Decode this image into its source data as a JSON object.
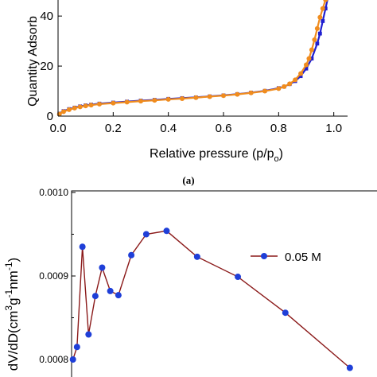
{
  "chart_data": [
    {
      "type": "line",
      "panel_label": "(a)",
      "xlabel": "Relative pressure (p/p",
      "xlabel_sub": "o",
      "xlabel_close": ")",
      "ylabel": "Quantity Adsorb",
      "xlim": [
        0,
        1.05
      ],
      "ylim": [
        0,
        48
      ],
      "x_ticks": [
        "0.0",
        "0.2",
        "0.4",
        "0.6",
        "0.8",
        "1.0"
      ],
      "y_ticks": [
        "0",
        "20",
        "40"
      ],
      "colors": {
        "blue": "#1f1fd0",
        "orange": "#f08c1e"
      },
      "series": [
        {
          "color_key": "blue",
          "marker": "square",
          "x": [
            0.005,
            0.02,
            0.04,
            0.06,
            0.08,
            0.1,
            0.12,
            0.15,
            0.2,
            0.25,
            0.3,
            0.35,
            0.4,
            0.45,
            0.5,
            0.55,
            0.6,
            0.65,
            0.7,
            0.75,
            0.8,
            0.82,
            0.84,
            0.86,
            0.88,
            0.9,
            0.92,
            0.94,
            0.95,
            0.96,
            0.97,
            0.98
          ],
          "y": [
            1.0,
            2.0,
            2.8,
            3.4,
            3.9,
            4.3,
            4.6,
            5.0,
            5.4,
            5.8,
            6.2,
            6.5,
            6.9,
            7.2,
            7.5,
            7.9,
            8.3,
            8.8,
            9.4,
            10.1,
            11.2,
            11.8,
            12.8,
            14.0,
            16.0,
            19.0,
            23.0,
            29.0,
            33.0,
            38.0,
            43.0,
            48.0
          ]
        },
        {
          "color_key": "orange",
          "marker": "circle",
          "x": [
            0.005,
            0.02,
            0.04,
            0.06,
            0.08,
            0.1,
            0.12,
            0.15,
            0.2,
            0.25,
            0.3,
            0.35,
            0.4,
            0.45,
            0.5,
            0.55,
            0.6,
            0.65,
            0.7,
            0.75,
            0.8,
            0.82,
            0.84,
            0.86,
            0.88,
            0.9,
            0.91,
            0.92,
            0.93,
            0.94,
            0.95,
            0.96,
            0.97,
            0.98
          ],
          "y": [
            0.8,
            1.8,
            2.6,
            3.2,
            3.7,
            4.1,
            4.4,
            4.8,
            5.2,
            5.6,
            6.0,
            6.3,
            6.7,
            7.0,
            7.4,
            7.8,
            8.2,
            8.7,
            9.3,
            10.0,
            11.0,
            11.8,
            12.9,
            14.5,
            17.0,
            20.5,
            23.0,
            26.5,
            30.5,
            35.0,
            39.5,
            43.0,
            46.5,
            48.0
          ]
        }
      ]
    },
    {
      "type": "line",
      "ylabel_main": "dV/dD(cm",
      "ylabel_sup1": "3",
      "ylabel_mid": "g",
      "ylabel_sup2": "-1",
      "ylabel_mid2": "nm",
      "ylabel_sup3": "-1",
      "ylabel_close": ")",
      "xlim": [
        0,
        45
      ],
      "ylim": [
        0.00079,
        0.001
      ],
      "y_ticks": [
        "0.0008",
        "0.0009",
        "0.0010"
      ],
      "y_tick_values": [
        0.0008,
        0.0009,
        0.001
      ],
      "legend": {
        "placement": "right"
      },
      "colors": {
        "line": "#8b1a1a",
        "marker": "#1f3fd8"
      },
      "series": [
        {
          "name": "0.05 M",
          "x": [
            0.2,
            0.8,
            1.6,
            2.5,
            3.5,
            4.5,
            5.7,
            6.9,
            8.8,
            11.0,
            14.0,
            18.5,
            24.5,
            31.5,
            41.0
          ],
          "y": [
            0.0008,
            0.000815,
            0.000935,
            0.00083,
            0.000876,
            0.00091,
            0.000882,
            0.000877,
            0.000925,
            0.00095,
            0.000954,
            0.000923,
            0.000899,
            0.000856,
            0.00079
          ]
        }
      ]
    }
  ]
}
